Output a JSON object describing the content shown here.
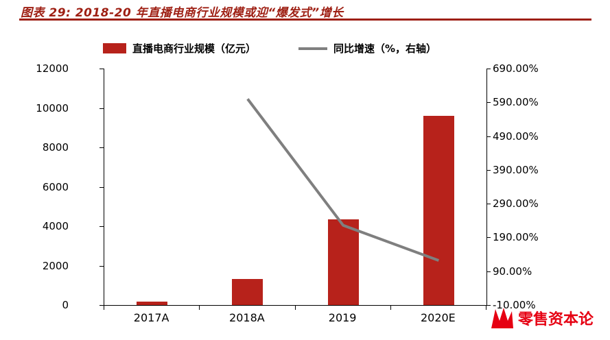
{
  "header": {
    "title": "图表 29: 2018-20 年直播电商行业规模或迎“爆发式”增长",
    "color": "#9E1F13"
  },
  "chart_data": {
    "type": "bar",
    "combo": "bar+line",
    "title": "图表 29: 2018-20 年直播电商行业规模或迎“爆发式”增长",
    "categories": [
      "2017A",
      "2018A",
      "2019",
      "2020E"
    ],
    "series": [
      {
        "name": "直播电商行业规模（亿元）",
        "type": "bar",
        "axis": "left",
        "color": "#B7221B",
        "values": [
          190,
          1330,
          4338,
          9610
        ]
      },
      {
        "name": "同比增速（%，右轴）",
        "type": "line",
        "axis": "right",
        "color": "#7F7F7F",
        "values": [
          null,
          600,
          226,
          122
        ]
      }
    ],
    "left_axis": {
      "min": 0,
      "max": 12000,
      "step": 2000,
      "ticks": [
        "12000",
        "10000",
        "8000",
        "6000",
        "4000",
        "2000",
        "0"
      ]
    },
    "right_axis": {
      "min": -10,
      "max": 690,
      "step": 100,
      "ticks": [
        "690.00%",
        "590.00%",
        "490.00%",
        "390.00%",
        "290.00%",
        "190.00%",
        "90.00%",
        "-10.00%"
      ]
    },
    "grid": false,
    "legend_position": "top"
  },
  "watermark": {
    "text": "零售资本论",
    "color": "#E60012"
  }
}
